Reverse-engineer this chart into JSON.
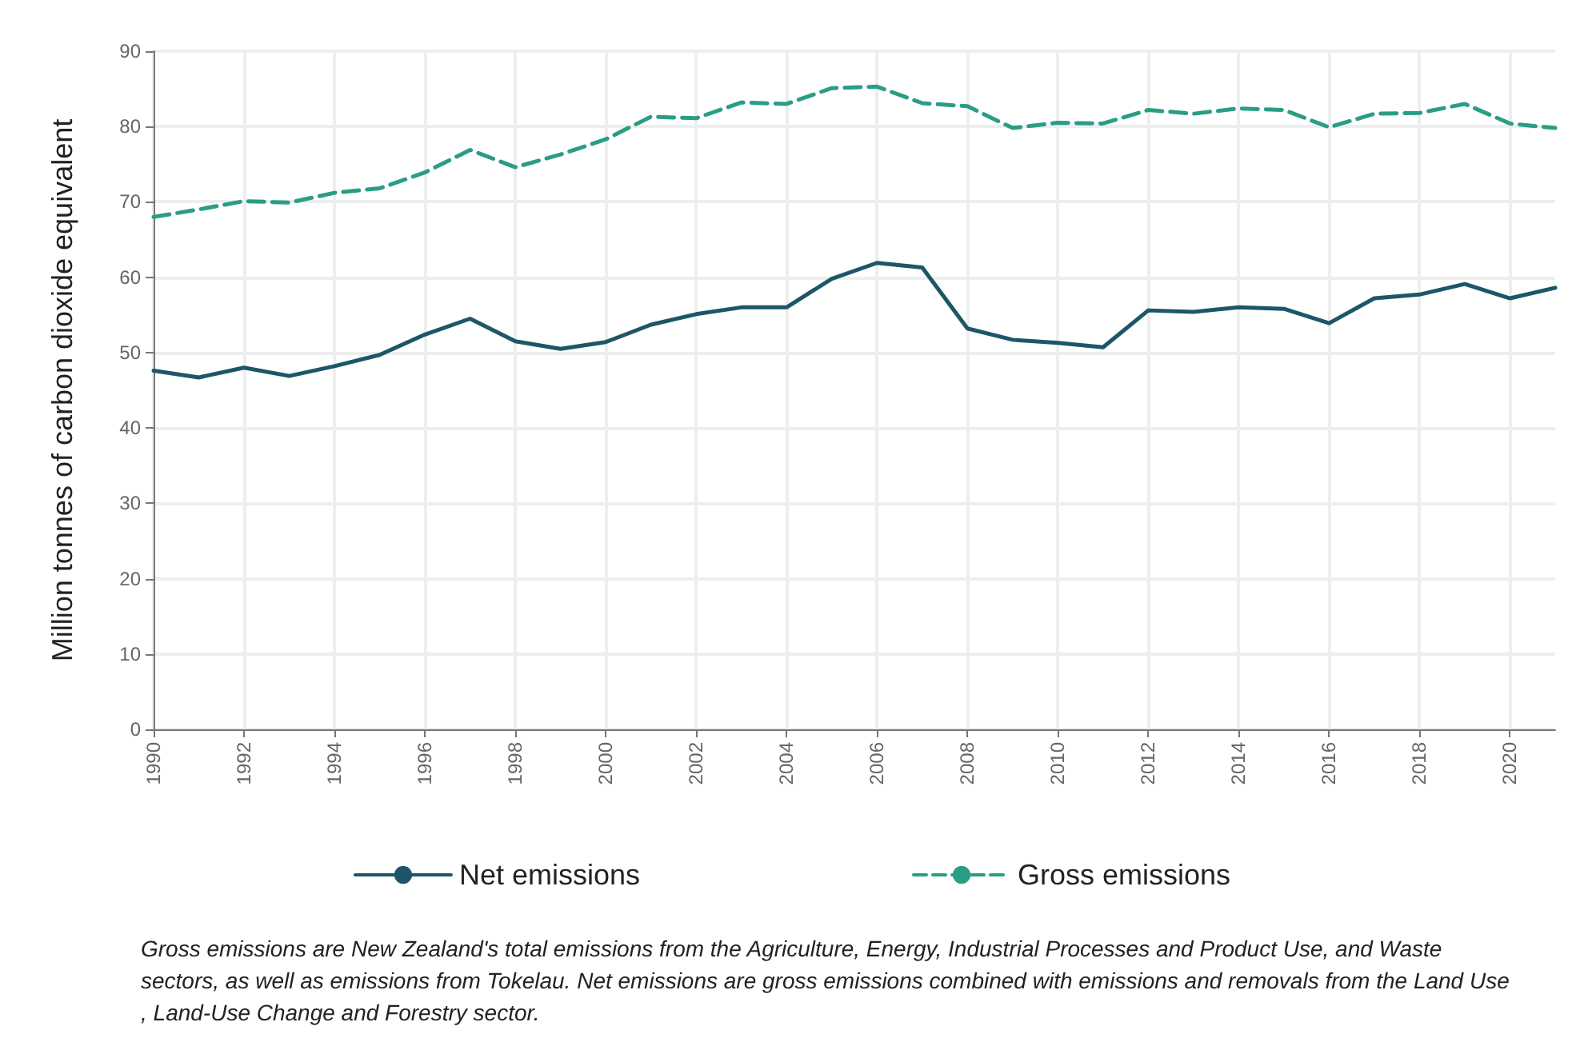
{
  "chart_data": {
    "type": "line",
    "ylabel": "Million tonnes of carbon dioxide equivalent",
    "x": [
      1990,
      1991,
      1992,
      1993,
      1994,
      1995,
      1996,
      1997,
      1998,
      1999,
      2000,
      2001,
      2002,
      2003,
      2004,
      2005,
      2006,
      2007,
      2008,
      2009,
      2010,
      2011,
      2012,
      2013,
      2014,
      2015,
      2016,
      2017,
      2018,
      2019,
      2020,
      2021
    ],
    "series": [
      {
        "name": "Net emissions",
        "color": "#1d5668",
        "line_style": "solid",
        "values": [
          47.6,
          46.7,
          48.0,
          46.9,
          48.2,
          49.7,
          52.4,
          54.5,
          51.5,
          50.5,
          51.4,
          53.7,
          55.1,
          56.0,
          56.0,
          59.8,
          61.9,
          61.3,
          53.2,
          51.7,
          51.3,
          50.7,
          55.6,
          55.4,
          56.0,
          55.8,
          53.9,
          57.2,
          57.7,
          59.1,
          57.2,
          58.6
        ]
      },
      {
        "name": "Gross emissions",
        "color": "#2a9d85",
        "line_style": "dashed",
        "values": [
          68.0,
          69.0,
          70.1,
          69.9,
          71.2,
          71.8,
          73.9,
          76.9,
          74.6,
          76.3,
          78.3,
          81.3,
          81.1,
          83.2,
          83.0,
          85.1,
          85.3,
          83.1,
          82.7,
          79.8,
          80.5,
          80.4,
          82.2,
          81.7,
          82.4,
          82.2,
          79.9,
          81.7,
          81.8,
          83.0,
          80.4,
          79.8
        ]
      }
    ],
    "xlim": [
      1990,
      2021
    ],
    "xticks": [
      1990,
      1992,
      1994,
      1996,
      1998,
      2000,
      2002,
      2004,
      2006,
      2008,
      2010,
      2012,
      2014,
      2016,
      2018,
      2020
    ],
    "ylim": [
      0,
      90
    ],
    "yticks": [
      0,
      10,
      20,
      30,
      40,
      50,
      60,
      70,
      80,
      90
    ],
    "grid": true,
    "legend": "bottom",
    "marker": "none",
    "annotations": [
      "Gross emissions are New Zealand's total emissions from the Agriculture, Energy, Industrial Processes and Product Use, and Waste sectors, as well as emissions from Tokelau. Net emissions are gross emissions combined with emissions and removals from the Land Use, Land-Use Change and Forestry sector."
    ]
  }
}
